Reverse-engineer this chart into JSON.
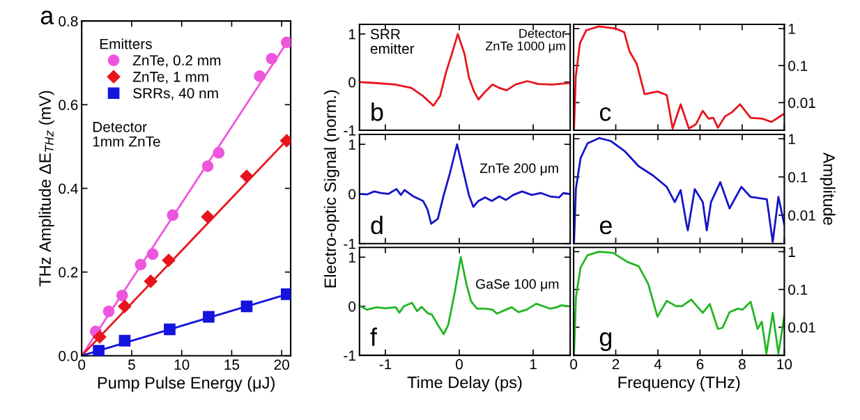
{
  "chart_data": [
    {
      "type": "scatter",
      "xlabel": "Pump Pulse Energy (μJ)",
      "ylabel": "THz Amplitude ΔE$_{THz}$ (mV)",
      "legend_title": "Emitters",
      "legend": "top left",
      "annotations": [
        "a",
        "Detector\n1mm ZnTe"
      ],
      "xlim": [
        0,
        20.9
      ],
      "xticks": [
        0,
        5,
        10,
        15,
        20
      ],
      "ylim": [
        0,
        0.8
      ],
      "yticks": [
        {
          "value": 0,
          "label": "0.0"
        },
        0.2,
        0.4,
        0.6,
        0.8
      ],
      "series": [
        {
          "name": "ZnTe, 0.2 mm",
          "color": "#ee55dd",
          "marker": "circle",
          "x": [
            1.4,
            2.7,
            4.05,
            5.9,
            7.1,
            9.1,
            12.6,
            13.7,
            17.8,
            19.0,
            20.5
          ],
          "values": [
            0.058,
            0.106,
            0.144,
            0.218,
            0.243,
            0.336,
            0.453,
            0.485,
            0.668,
            0.71,
            0.749
          ]
        },
        {
          "name": "ZnTe, 1 mm",
          "color": "#e8141c",
          "marker": "diamond",
          "x": [
            1.8,
            4.3,
            6.9,
            8.7,
            12.6,
            16.5,
            20.5
          ],
          "values": [
            0.045,
            0.118,
            0.178,
            0.228,
            0.332,
            0.429,
            0.514
          ]
        },
        {
          "name": "SRRs, 40 nm",
          "color": "#1414dc",
          "marker": "square",
          "x": [
            1.7,
            4.3,
            8.8,
            12.7,
            16.5,
            20.5
          ],
          "values": [
            0.012,
            0.036,
            0.063,
            0.093,
            0.118,
            0.147
          ]
        },
        {
          "type": "line",
          "color": "#ee55dd",
          "x": [
            0,
            20.7
          ],
          "values": [
            0,
            0.755
          ]
        },
        {
          "type": "line",
          "color": "#e8141c",
          "x": [
            0,
            20.7
          ],
          "values": [
            0,
            0.52
          ]
        },
        {
          "type": "line",
          "color": "#1414dc",
          "x": [
            0,
            20.7
          ],
          "values": [
            0,
            0.148
          ]
        }
      ]
    },
    {
      "type": "line",
      "annotations": [
        "SRR\nemitter",
        "Detector\nZnTe 1000 μm",
        "b"
      ],
      "xlim": [
        -1.35,
        1.5
      ],
      "xticks": [
        -1,
        0,
        1
      ],
      "ylim": [
        -1,
        1.2
      ],
      "yticks": [
        -1,
        0,
        1
      ],
      "tick_labels": "y",
      "series": [
        {
          "color": "#e8141c",
          "x": [
            -1.34,
            -1.12,
            -0.87,
            -0.65,
            -0.49,
            -0.35,
            -0.26,
            -0.18,
            -0.1,
            -0.02,
            0.07,
            0.13,
            0.2,
            0.26,
            0.35,
            0.45,
            0.54,
            0.64,
            0.76,
            0.92,
            1.07,
            1.26,
            1.48
          ],
          "values": [
            0,
            -0.02,
            -0.05,
            -0.12,
            -0.29,
            -0.49,
            -0.29,
            0.2,
            0.59,
            1.0,
            0.59,
            0.1,
            -0.2,
            -0.36,
            -0.2,
            -0.05,
            -0.12,
            -0.17,
            -0.05,
            0.02,
            -0.04,
            -0.05,
            -0.02
          ]
        }
      ]
    },
    {
      "type": "line",
      "annotations": [
        "c"
      ],
      "log": "y",
      "xlim": [
        0,
        10
      ],
      "xticks": [
        0,
        2,
        4,
        6,
        8,
        10
      ],
      "ylim": [
        0.0018,
        1.3
      ],
      "yticks": [
        0.01,
        0.1,
        1
      ],
      "tick_labels": "y",
      "series": [
        {
          "color": "#e8141c",
          "x": [
            0.02,
            0.1,
            0.3,
            0.6,
            1.2,
            2.0,
            2.4,
            2.65,
            3.0,
            3.37,
            3.98,
            4.42,
            4.7,
            5.08,
            5.47,
            5.8,
            6.13,
            6.4,
            6.63,
            6.85,
            7.18,
            7.51,
            7.9,
            8.4,
            8.95,
            9.39,
            9.94
          ],
          "values": [
            0.002,
            0.05,
            0.4,
            0.9,
            1.15,
            1.0,
            0.8,
            0.245,
            0.11,
            0.017,
            0.02,
            0.016,
            0.002,
            0.009,
            0.002,
            0.0026,
            0.006,
            0.0037,
            0.0039,
            0.0021,
            0.0042,
            0.0055,
            0.009,
            0.0039,
            0.0037,
            0.003,
            0.0048
          ]
        }
      ]
    },
    {
      "type": "line",
      "ylabel": "Electro-optic Signal (norm.)",
      "annotations": [
        "ZnTe 200 μm",
        "d"
      ],
      "xlim": [
        -1.35,
        1.5
      ],
      "xticks": [
        -1,
        0,
        1
      ],
      "ylim": [
        -1,
        1.2
      ],
      "yticks": [
        -1,
        0,
        1
      ],
      "tick_labels": "y",
      "series": [
        {
          "color": "#1414c8",
          "x": [
            -1.35,
            -1.25,
            -1.15,
            -1.06,
            -0.96,
            -0.85,
            -0.79,
            -0.74,
            -0.62,
            -0.49,
            -0.43,
            -0.38,
            -0.29,
            -0.21,
            -0.13,
            -0.03,
            0.07,
            0.13,
            0.19,
            0.26,
            0.35,
            0.44,
            0.54,
            0.63,
            0.73,
            0.85,
            0.98,
            1.1,
            1.23,
            1.35,
            1.41,
            1.49
          ],
          "values": [
            0,
            -0.01,
            0.05,
            0.02,
            0,
            0.1,
            -0.02,
            0.08,
            -0.05,
            -0.14,
            -0.31,
            -0.6,
            -0.5,
            -0.02,
            0.4,
            1.0,
            0.36,
            -0.02,
            -0.26,
            -0.14,
            -0.07,
            -0.14,
            -0.05,
            -0.12,
            -0.02,
            0.05,
            -0.02,
            0.02,
            -0.05,
            -0.07,
            0.02,
            0
          ]
        }
      ]
    },
    {
      "type": "line",
      "y2label": "Amplitude",
      "annotations": [
        "e"
      ],
      "log": "y",
      "xlim": [
        0,
        10
      ],
      "xticks": [
        0,
        2,
        4,
        6,
        8,
        10
      ],
      "ylim": [
        0.0018,
        1.3
      ],
      "yticks": [
        0.01,
        0.1,
        1
      ],
      "tick_labels": "y",
      "series": [
        {
          "color": "#1414c8",
          "x": [
            0.02,
            0.11,
            0.33,
            0.66,
            1.22,
            1.77,
            2.43,
            3.09,
            3.76,
            4.42,
            4.8,
            5.08,
            5.36,
            5.42,
            5.75,
            6.13,
            6.32,
            6.52,
            6.96,
            7.4,
            7.96,
            8.4,
            9.17,
            9.45,
            9.72,
            10
          ],
          "values": [
            0.002,
            0.05,
            0.31,
            0.76,
            1.04,
            0.87,
            0.47,
            0.19,
            0.11,
            0.055,
            0.022,
            0.045,
            0.0057,
            0.004,
            0.048,
            0.022,
            0.004,
            0.022,
            0.073,
            0.015,
            0.055,
            0.03,
            0.026,
            0.002,
            0.03,
            0.0057
          ]
        }
      ]
    },
    {
      "type": "line",
      "xlabel": "Time Delay (ps)",
      "annotations": [
        "GaSe 100 μm",
        "f"
      ],
      "xlim": [
        -1.35,
        1.5
      ],
      "xticks": [
        -1,
        0,
        1
      ],
      "ylim": [
        -1,
        1.2
      ],
      "yticks": [
        -1,
        0,
        1
      ],
      "series": [
        {
          "color": "#22b522",
          "x": [
            -1.35,
            -1.25,
            -1.12,
            -1.0,
            -0.86,
            -0.81,
            -0.75,
            -0.64,
            -0.57,
            -0.51,
            -0.43,
            -0.37,
            -0.29,
            -0.21,
            -0.15,
            -0.06,
            0.02,
            0.1,
            0.16,
            0.24,
            0.35,
            0.45,
            0.51,
            0.63,
            0.71,
            0.8,
            0.91,
            1.04,
            1.14,
            1.23,
            1.32,
            1.38,
            1.49
          ],
          "values": [
            0.01,
            -0.07,
            -0.02,
            -0.04,
            -0.02,
            -0.13,
            0.0,
            0.07,
            -0.1,
            -0.01,
            -0.14,
            -0.17,
            -0.38,
            -0.57,
            -0.38,
            0.29,
            1.0,
            0.43,
            0.1,
            -0.05,
            -0.05,
            -0.07,
            -0.15,
            -0.07,
            -0.02,
            -0.12,
            -0.07,
            0.05,
            0.0,
            -0.05,
            -0.02,
            0.02,
            0
          ]
        }
      ]
    },
    {
      "type": "line",
      "xlabel": "Frequency (THz)",
      "annotations": [
        "g"
      ],
      "log": "y",
      "xlim": [
        0,
        10
      ],
      "xticks": [
        0,
        2,
        4,
        6,
        8,
        10
      ],
      "ylim": [
        0.0018,
        1.3
      ],
      "yticks": [
        0.01,
        0.1,
        1
      ],
      "series": [
        {
          "color": "#22b522",
          "x": [
            0.02,
            0.11,
            0.33,
            0.66,
            1.22,
            1.88,
            2.54,
            3.09,
            3.54,
            3.98,
            4.42,
            4.86,
            5.14,
            5.58,
            6.13,
            6.46,
            6.85,
            7.07,
            7.4,
            7.79,
            8.01,
            8.4,
            8.73,
            8.93,
            9.15,
            9.45,
            9.72,
            10
          ],
          "values": [
            0.002,
            0.063,
            0.38,
            0.81,
            1.0,
            0.93,
            0.54,
            0.41,
            0.14,
            0.019,
            0.05,
            0.036,
            0.036,
            0.054,
            0.024,
            0.041,
            0.009,
            0.0097,
            0.025,
            0.031,
            0.029,
            0.047,
            0.009,
            0.014,
            0.002,
            0.024,
            0.002,
            0.02
          ]
        }
      ]
    }
  ]
}
